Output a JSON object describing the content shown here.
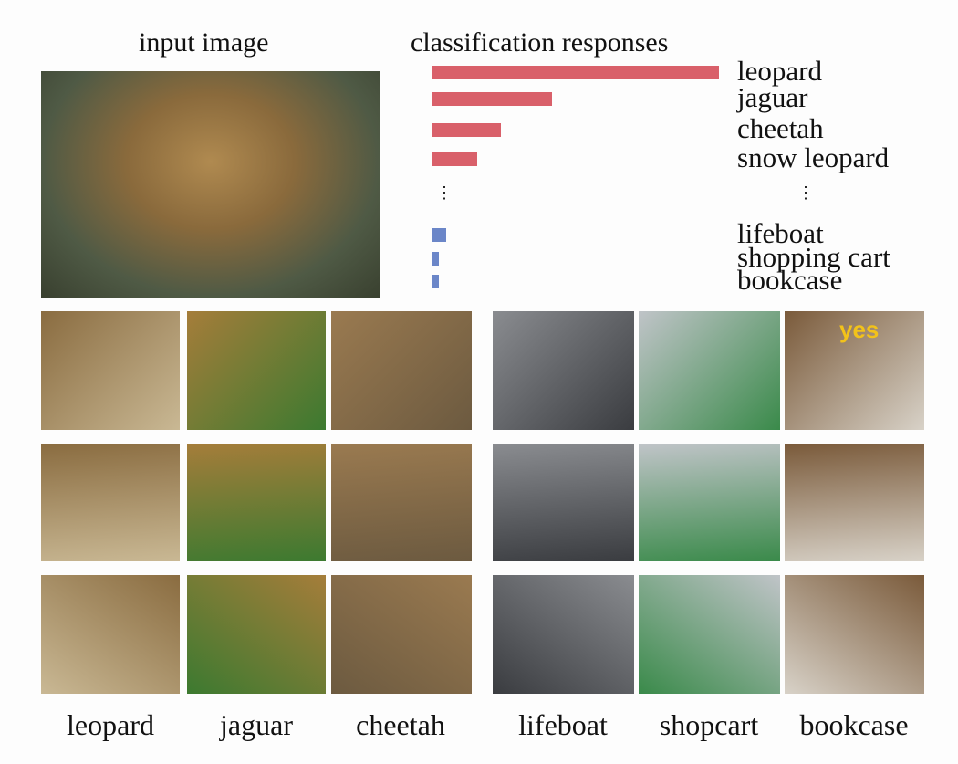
{
  "titles": {
    "input": "input image",
    "responses": "classification responses"
  },
  "chart_data": {
    "type": "bar",
    "orientation": "horizontal",
    "title": "classification responses",
    "categories": [
      "leopard",
      "jaguar",
      "cheetah",
      "snow leopard",
      "lifeboat",
      "shopping cart",
      "bookcase"
    ],
    "values": [
      1.0,
      0.42,
      0.24,
      0.16,
      0.05,
      0.025,
      0.025
    ],
    "colors": [
      "#d9606a",
      "#d9606a",
      "#d9606a",
      "#d9606a",
      "#6b86c8",
      "#6b86c8",
      "#6b86c8"
    ],
    "ellipsis": "⋮"
  },
  "image_grid": {
    "captions": [
      "leopard",
      "jaguar",
      "cheetah",
      "lifeboat",
      "shopcart",
      "bookcase"
    ],
    "bookcase_overlay": "yes"
  }
}
